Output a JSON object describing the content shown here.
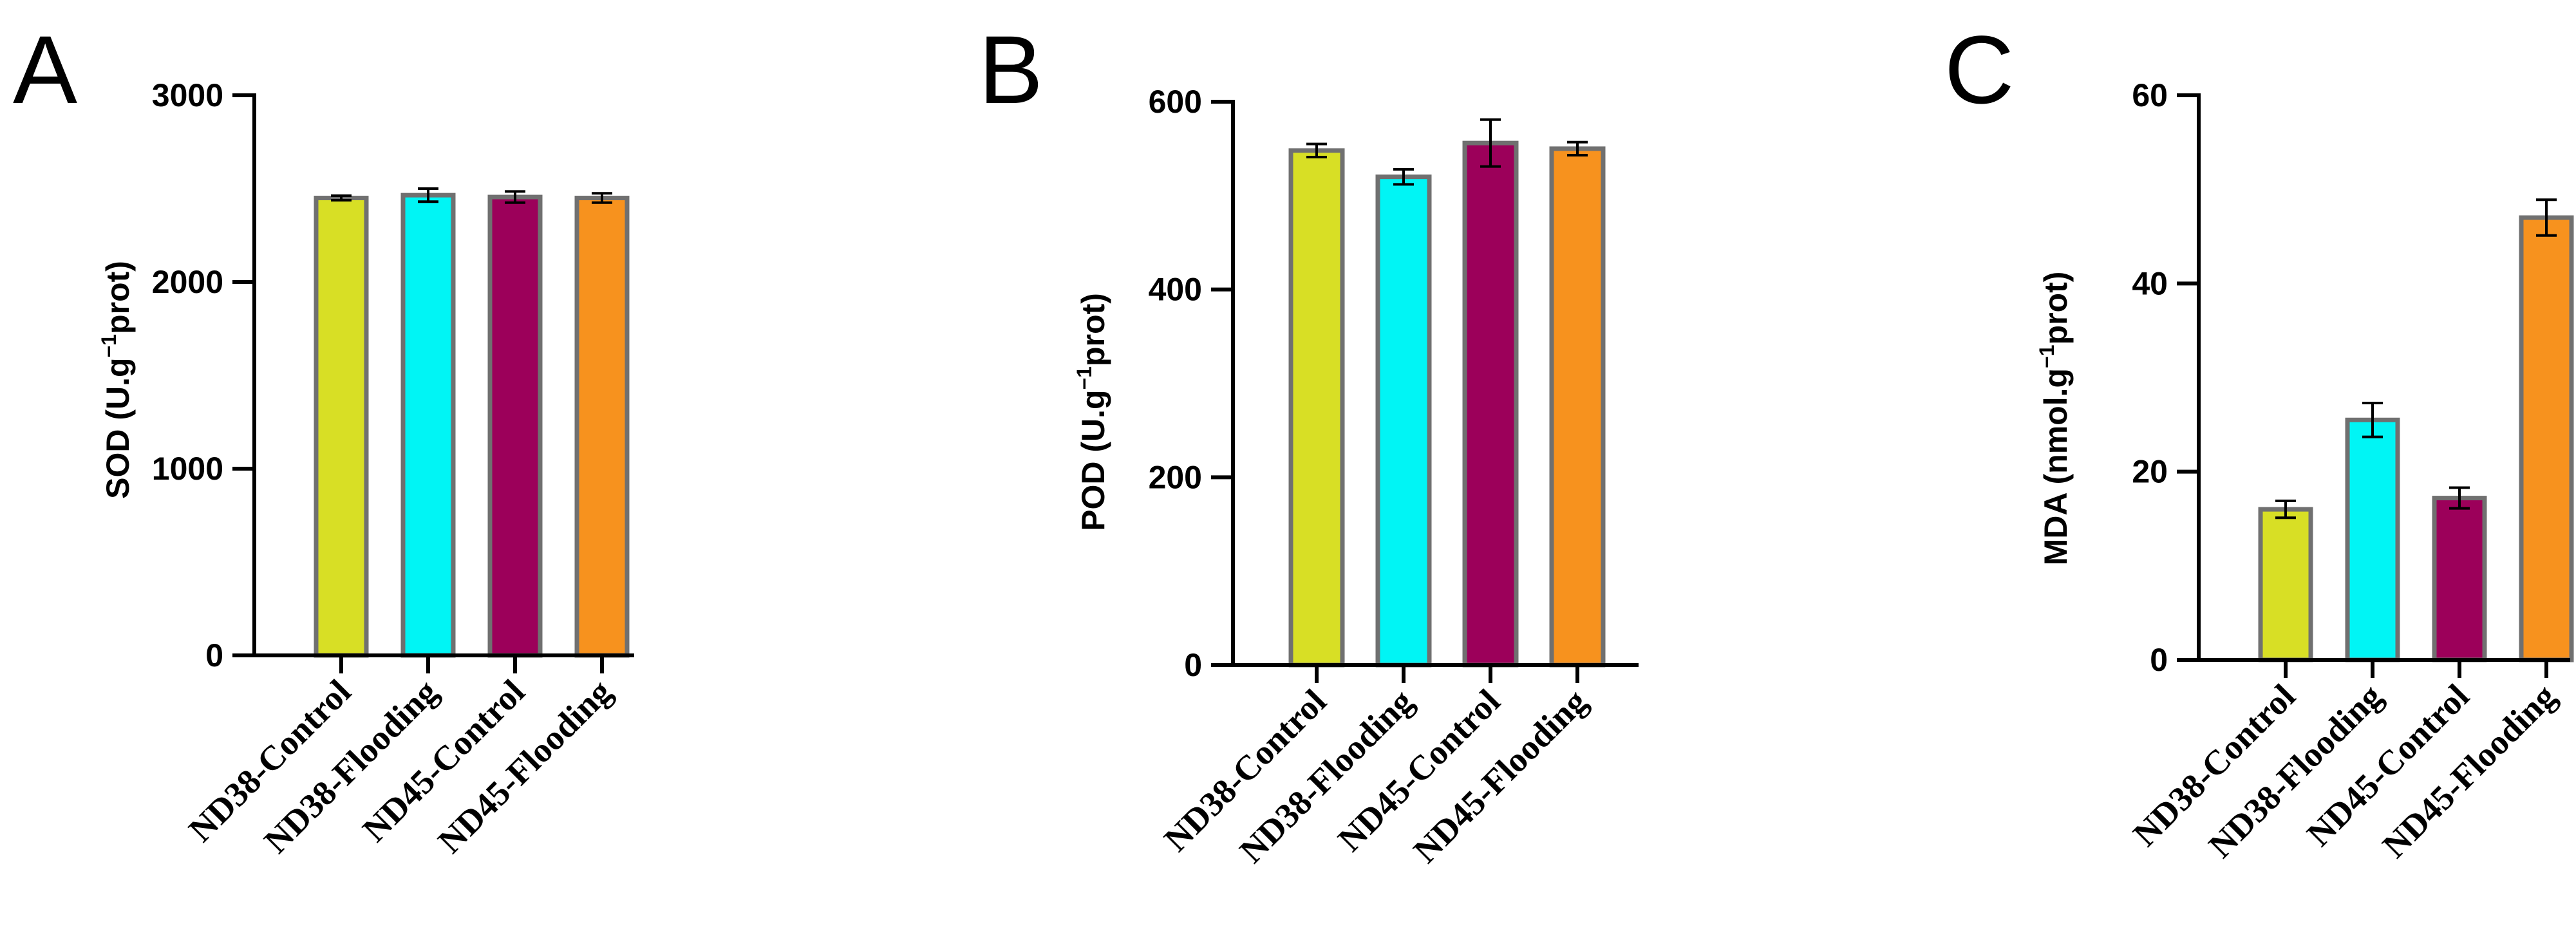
{
  "chart_data": [
    {
      "type": "bar",
      "panel": "A",
      "ylabel": {
        "main": "SOD (U.g",
        "sup": "−1",
        "tail": "prot)"
      },
      "ylim": [
        0,
        3000
      ],
      "yticks": [
        0,
        1000,
        2000,
        3000
      ],
      "categories": [
        "ND38-Control",
        "ND38-Flooding",
        "ND45-Control",
        "ND45-Flooding"
      ],
      "values": [
        2450,
        2465,
        2455,
        2450
      ],
      "errors": [
        12,
        35,
        30,
        25
      ],
      "colors": [
        "#d8df25",
        "#00f5f5",
        "#9c005a",
        "#f7921e"
      ],
      "grid": false
    },
    {
      "type": "bar",
      "panel": "B",
      "ylabel": {
        "main": "POD (U.g",
        "sup": "−1",
        "tail": "prot)"
      },
      "ylim": [
        0,
        600
      ],
      "yticks": [
        0,
        200,
        400,
        600
      ],
      "categories": [
        "ND38-Control",
        "ND38-Flooding",
        "ND45-Control",
        "ND45-Flooding"
      ],
      "values": [
        548,
        520,
        556,
        550
      ],
      "errors": [
        7,
        8,
        25,
        7
      ],
      "colors": [
        "#d8df25",
        "#00f5f5",
        "#9c005a",
        "#f7921e"
      ],
      "grid": false
    },
    {
      "type": "bar",
      "panel": "C",
      "ylabel": {
        "main": "MDA (nmol.g",
        "sup": "−1",
        "tail": "prot)"
      },
      "ylim": [
        0,
        60
      ],
      "yticks": [
        0,
        20,
        40,
        60
      ],
      "categories": [
        "ND38-Control",
        "ND38-Flooding",
        "ND45-Control",
        "ND45-Flooding"
      ],
      "values": [
        16,
        25.5,
        17.2,
        47
      ],
      "errors": [
        0.9,
        1.8,
        1.1,
        1.9
      ],
      "colors": [
        "#d8df25",
        "#00f5f5",
        "#9c005a",
        "#f7921e"
      ],
      "grid": false
    }
  ]
}
